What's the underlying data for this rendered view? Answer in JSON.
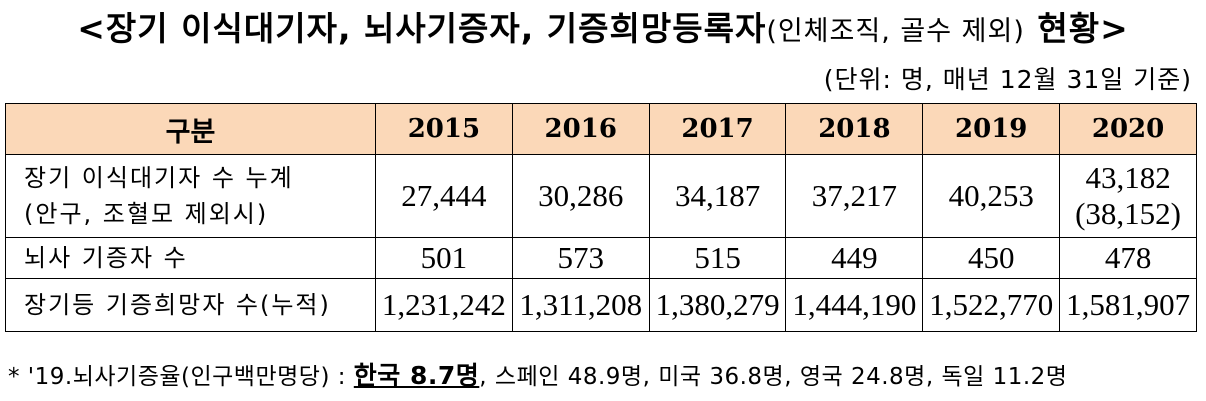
{
  "title": {
    "main": "<장기 이식대기자, 뇌사기증자, 기증희망등록자",
    "sub": "(인체조직, 골수 제외)",
    "tail": " 현황>"
  },
  "unit": "(단위: 명, 매년 12월 31일 기준)",
  "table": {
    "header_label": "구분",
    "years": [
      "2015",
      "2016",
      "2017",
      "2018",
      "2019",
      "2020"
    ],
    "rows": [
      {
        "label_lines": [
          "장기 이식대기자 수 누계",
          "(안구, 조혈모 제외시)"
        ],
        "values": [
          "27,444",
          "30,286",
          "34,187",
          "37,217",
          "40,253",
          "43,182"
        ],
        "last_extra": "(38,152)"
      },
      {
        "label_lines": [
          "뇌사 기증자 수"
        ],
        "values": [
          "501",
          "573",
          "515",
          "449",
          "450",
          "478"
        ]
      },
      {
        "label_lines": [
          "장기등 기증희망자 수(누적)"
        ],
        "values": [
          "1,231,242",
          "1,311,208",
          "1,380,279",
          "1,444,190",
          "1,522,770",
          "1,581,907"
        ]
      }
    ]
  },
  "footnote": {
    "prefix": "* '19.뇌사기증율(인구백만명당) : ",
    "highlight": "한국 8.7명",
    "rest": ", 스페인 48.9명, 미국 36.8명, 영국 24.8명, 독일 11.2명"
  }
}
